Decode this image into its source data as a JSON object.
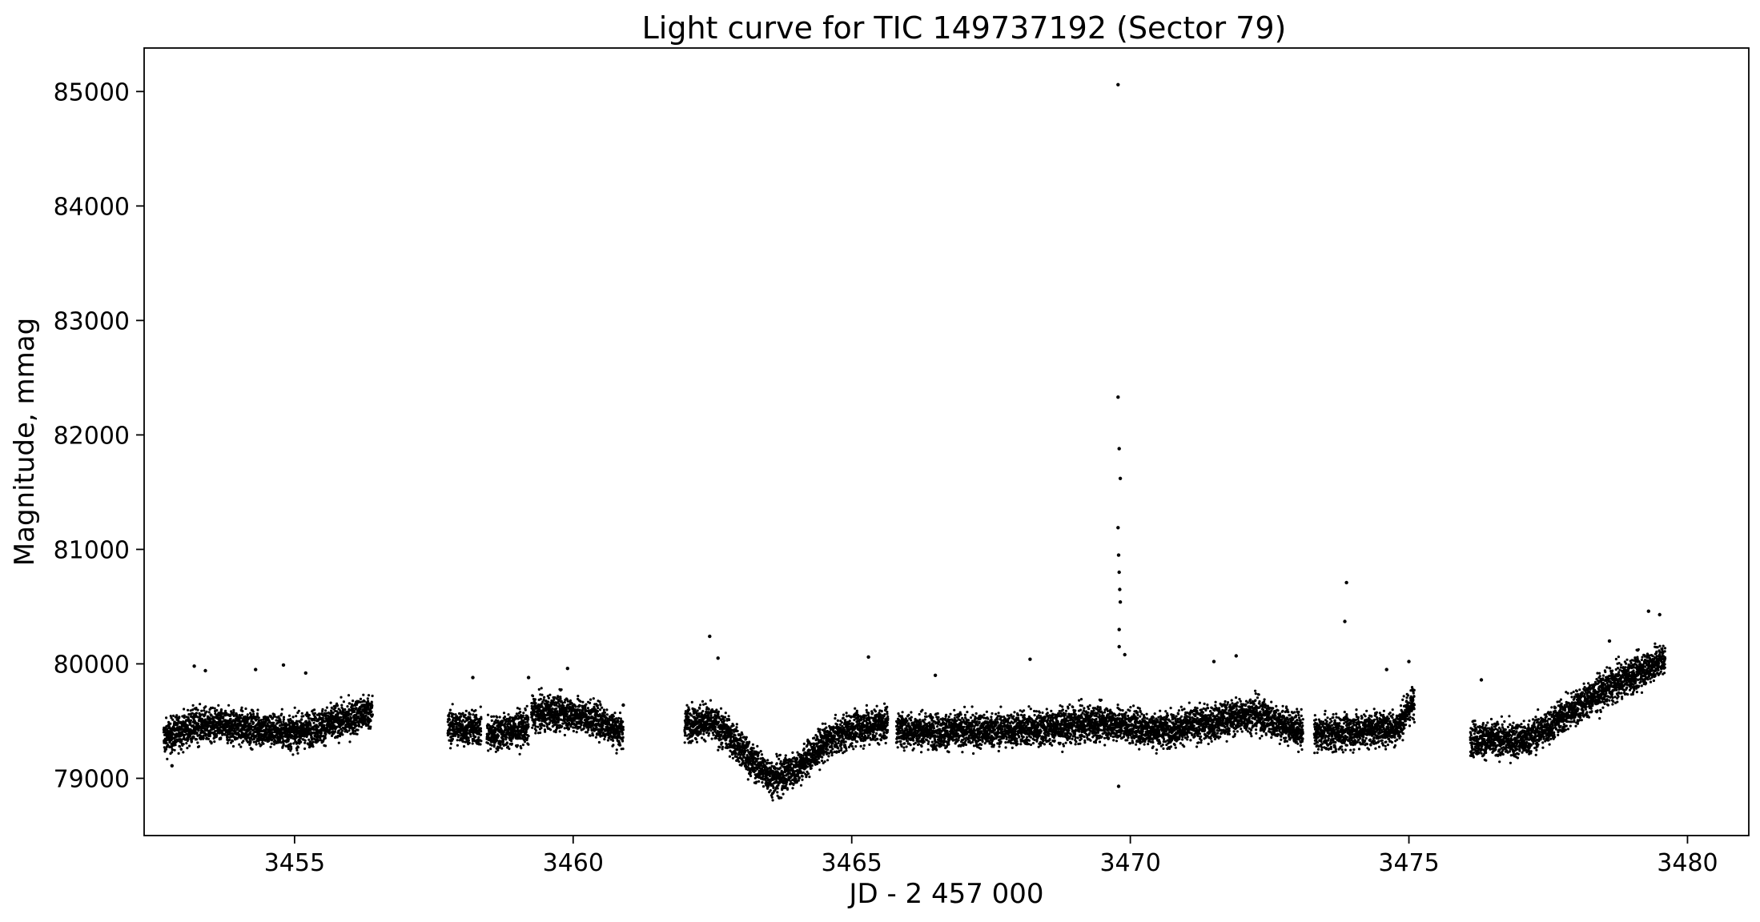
{
  "chart_data": {
    "type": "scatter",
    "title": "Light curve for TIC 149737192 (Sector 79)",
    "xlabel": "JD - 2 457 000",
    "ylabel": "Magnitude, mmag",
    "xlim": [
      3452.3,
      3481.1
    ],
    "ylim": [
      78500,
      85380
    ],
    "xticks": [
      3455,
      3460,
      3465,
      3470,
      3475,
      3480
    ],
    "yticks": [
      79000,
      80000,
      81000,
      82000,
      83000,
      84000,
      85000
    ],
    "grid": false,
    "legend": "none",
    "marker_color": "#000000",
    "segments": [
      {
        "x_range": [
          3452.65,
          3456.4
        ],
        "curve": [
          [
            3452.65,
            79350
          ],
          [
            3453.2,
            79460
          ],
          [
            3454.0,
            79450
          ],
          [
            3455.0,
            79400
          ],
          [
            3456.0,
            79520
          ],
          [
            3456.3,
            79580
          ]
        ]
      },
      {
        "x_range": [
          3457.75,
          3458.35
        ],
        "curve": [
          [
            3457.75,
            79450
          ],
          [
            3458.35,
            79430
          ]
        ]
      },
      {
        "x_range": [
          3458.45,
          3459.2
        ],
        "curve": [
          [
            3458.45,
            79380
          ],
          [
            3458.8,
            79410
          ],
          [
            3459.2,
            79450
          ]
        ]
      },
      {
        "x_range": [
          3459.25,
          3460.9
        ],
        "curve": [
          [
            3459.25,
            79560
          ],
          [
            3459.8,
            79580
          ],
          [
            3460.5,
            79500
          ],
          [
            3460.9,
            79390
          ]
        ]
      },
      {
        "x_range": [
          3462.0,
          3465.65
        ],
        "curve": [
          [
            3462.0,
            79480
          ],
          [
            3462.4,
            79500
          ],
          [
            3462.8,
            79380
          ],
          [
            3463.2,
            79150
          ],
          [
            3463.6,
            79000
          ],
          [
            3464.0,
            79080
          ],
          [
            3464.5,
            79300
          ],
          [
            3465.0,
            79430
          ],
          [
            3465.65,
            79480
          ]
        ]
      },
      {
        "x_range": [
          3465.8,
          3473.1
        ],
        "curve": [
          [
            3465.8,
            79430
          ],
          [
            3466.5,
            79410
          ],
          [
            3467.5,
            79420
          ],
          [
            3468.5,
            79440
          ],
          [
            3469.5,
            79490
          ],
          [
            3470.5,
            79420
          ],
          [
            3471.5,
            79490
          ],
          [
            3472.2,
            79570
          ],
          [
            3472.7,
            79480
          ],
          [
            3473.1,
            79410
          ]
        ]
      },
      {
        "x_range": [
          3473.3,
          3475.1
        ],
        "curve": [
          [
            3473.3,
            79380
          ],
          [
            3474.2,
            79420
          ],
          [
            3474.8,
            79450
          ],
          [
            3475.05,
            79650
          ]
        ]
      },
      {
        "x_range": [
          3476.1,
          3479.6
        ],
        "curve": [
          [
            3476.1,
            79350
          ],
          [
            3476.6,
            79330
          ],
          [
            3477.1,
            79340
          ],
          [
            3477.5,
            79450
          ],
          [
            3478.0,
            79620
          ],
          [
            3478.6,
            79800
          ],
          [
            3479.2,
            79950
          ],
          [
            3479.6,
            80050
          ]
        ]
      }
    ],
    "scatter_half_width": 150,
    "points": [
      [
        3469.78,
        85060
      ],
      [
        3469.78,
        82330
      ],
      [
        3469.8,
        81880
      ],
      [
        3469.82,
        81620
      ],
      [
        3469.78,
        81190
      ],
      [
        3469.79,
        80950
      ],
      [
        3469.8,
        80800
      ],
      [
        3469.81,
        80650
      ],
      [
        3469.82,
        80540
      ],
      [
        3469.8,
        80300
      ],
      [
        3469.8,
        80150
      ],
      [
        3469.79,
        78930
      ],
      [
        3473.88,
        80710
      ],
      [
        3473.85,
        80370
      ],
      [
        3453.2,
        79980
      ],
      [
        3453.4,
        79940
      ],
      [
        3454.3,
        79950
      ],
      [
        3454.8,
        79990
      ],
      [
        3455.2,
        79920
      ],
      [
        3458.2,
        79880
      ],
      [
        3459.2,
        79880
      ],
      [
        3459.9,
        79960
      ],
      [
        3460.9,
        79640
      ],
      [
        3462.45,
        80240
      ],
      [
        3462.6,
        80050
      ],
      [
        3465.3,
        80060
      ],
      [
        3468.2,
        80040
      ],
      [
        3469.9,
        80080
      ],
      [
        3471.5,
        80020
      ],
      [
        3471.9,
        80070
      ],
      [
        3474.6,
        79950
      ],
      [
        3475.0,
        80020
      ],
      [
        3476.3,
        79860
      ],
      [
        3478.6,
        80200
      ],
      [
        3479.3,
        80460
      ],
      [
        3479.5,
        80430
      ],
      [
        3463.7,
        78830
      ],
      [
        3466.5,
        79900
      ],
      [
        3452.8,
        79110
      ]
    ]
  }
}
